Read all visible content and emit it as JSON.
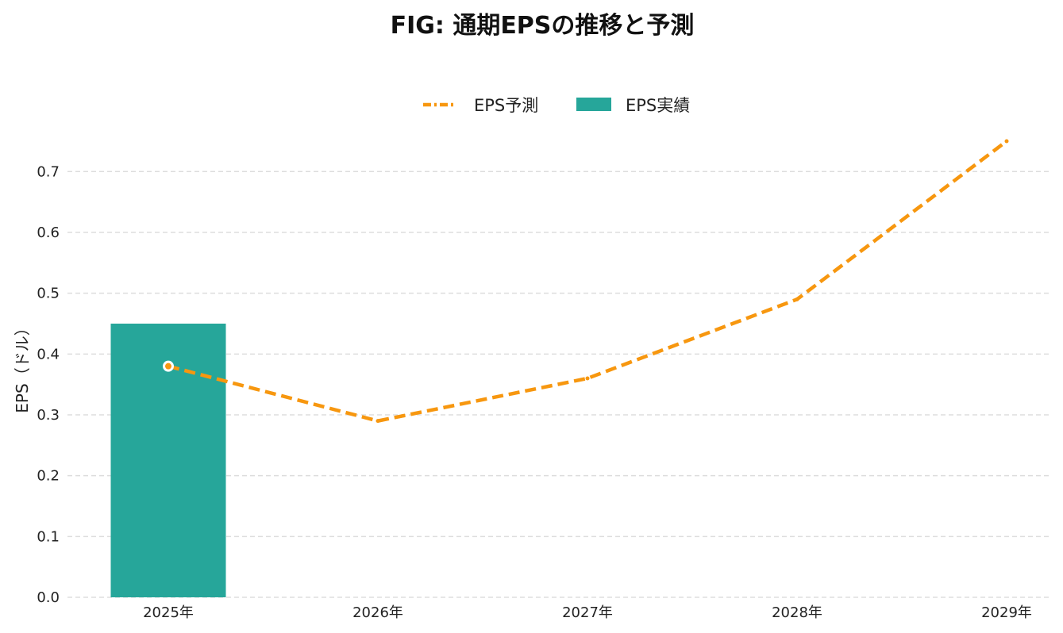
{
  "chart_data": {
    "type": "bar+line",
    "title": "FIG: 通期EPSの推移と予測",
    "ylabel": "EPS（ドル）",
    "xlabel": "",
    "categories": [
      "2025年",
      "2026年",
      "2027年",
      "2028年",
      "2029年"
    ],
    "ylim": [
      0,
      0.75
    ],
    "yticks": [
      "0.0",
      "0.1",
      "0.2",
      "0.3",
      "0.4",
      "0.5",
      "0.6",
      "0.7"
    ],
    "grid": true,
    "legend_position": "top-center",
    "legend": [
      {
        "name": "EPS予測",
        "kind": "line",
        "color": "#f7970f"
      },
      {
        "name": "EPS実績",
        "kind": "bar",
        "color": "#26a69a"
      }
    ],
    "series": [
      {
        "name": "EPS実績",
        "type": "bar",
        "color": "#26a69a",
        "values": [
          0.45,
          null,
          null,
          null,
          null
        ]
      },
      {
        "name": "EPS予測",
        "type": "line",
        "style": "dashed",
        "color": "#f7970f",
        "values": [
          0.38,
          0.29,
          0.36,
          0.49,
          0.75
        ]
      }
    ]
  }
}
